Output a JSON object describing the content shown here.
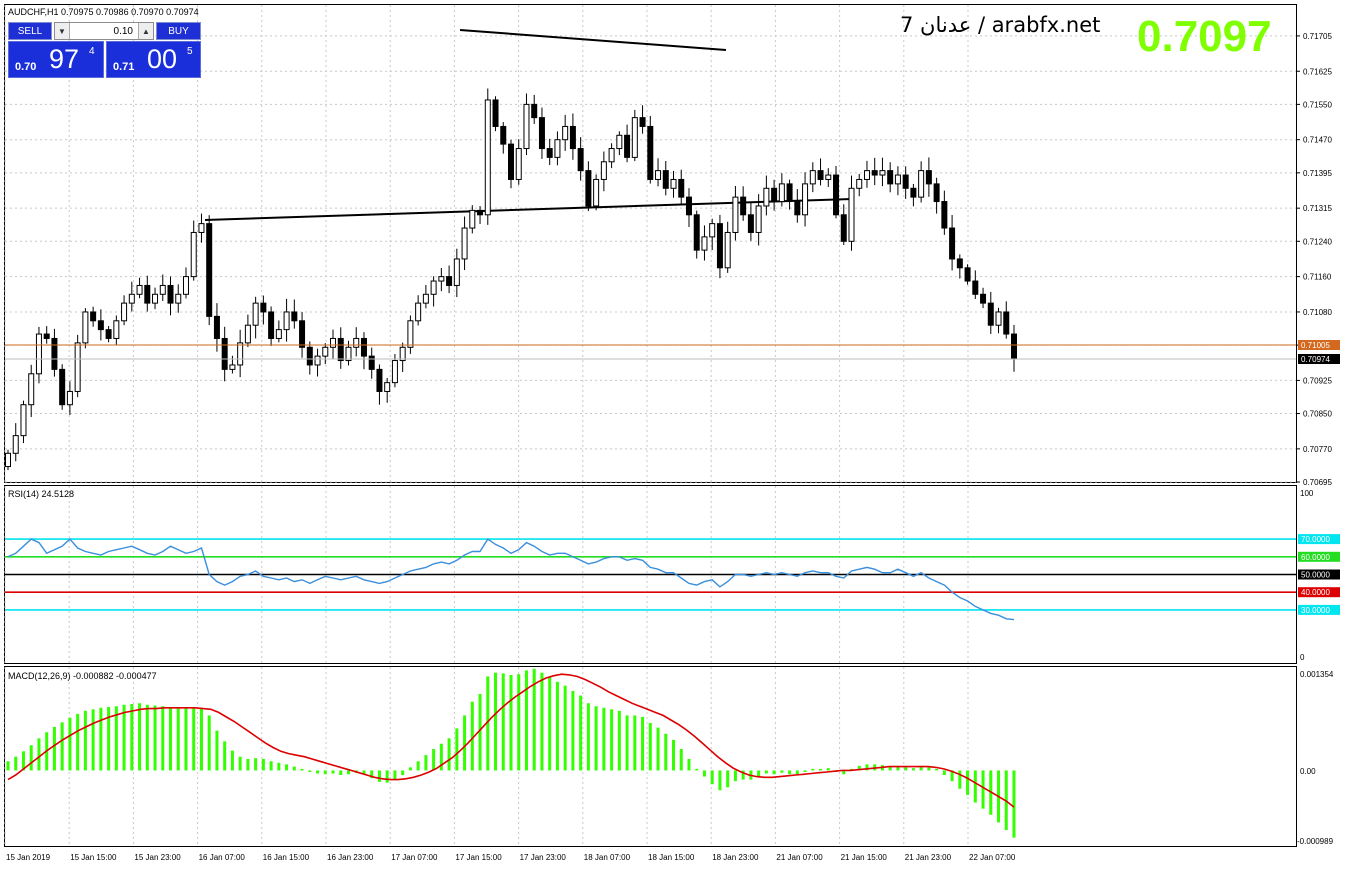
{
  "window": {
    "title": "AUDCHF,H1  0.70975 0.70986 0.70970 0.70974",
    "watermark": "7 عدنان / arabfx.net",
    "big_price": "0.7097"
  },
  "trade_panel": {
    "sell_label": "SELL",
    "buy_label": "BUY",
    "lot": "0.10",
    "sell_small": "0.70",
    "sell_big": "97",
    "sell_sup": "4",
    "buy_small": "0.71",
    "buy_big": "00",
    "buy_sup": "5"
  },
  "colors": {
    "background": "#ffffff",
    "grid": "#c8c8c8",
    "candle": "#000000",
    "rsi_line": "#3a8fdc",
    "macd_hist": "#33ff00",
    "macd_signal": "#dd0000",
    "ask_line": "#d2691e",
    "level_70_30": "#00e5ee",
    "level_60": "#22dd22",
    "level_50": "#000000",
    "level_40": "#dd0000",
    "big_price": "#7fff00"
  },
  "chart_data": [
    {
      "type": "candlestick",
      "symbol": "AUDCHF",
      "timeframe": "H1",
      "ylim": [
        0.70695,
        0.71775
      ],
      "yticks": [
        "0.71705",
        "0.71625",
        "0.71550",
        "0.71470",
        "0.71395",
        "0.71315",
        "0.71240",
        "0.71160",
        "0.71080",
        "0.71005",
        "0.70925",
        "0.70850",
        "0.70770",
        "0.70695"
      ],
      "xticks": [
        "15 Jan 2019",
        "15 Jan 15:00",
        "15 Jan 23:00",
        "16 Jan 07:00",
        "16 Jan 15:00",
        "16 Jan 23:00",
        "17 Jan 07:00",
        "17 Jan 15:00",
        "17 Jan 23:00",
        "18 Jan 07:00",
        "18 Jan 15:00",
        "18 Jan 23:00",
        "21 Jan 07:00",
        "21 Jan 15:00",
        "21 Jan 23:00",
        "22 Jan 07:00"
      ],
      "ask_price": "0.71005",
      "bid_price": "0.70974",
      "close": [
        0.7076,
        0.708,
        0.7087,
        0.7094,
        0.7103,
        0.7102,
        0.7095,
        0.7087,
        0.709,
        0.7101,
        0.7108,
        0.7106,
        0.7104,
        0.7102,
        0.7106,
        0.711,
        0.7112,
        0.7114,
        0.711,
        0.7112,
        0.7114,
        0.711,
        0.7112,
        0.7116,
        0.7126,
        0.7128,
        0.7107,
        0.7102,
        0.7095,
        0.7096,
        0.7101,
        0.7105,
        0.711,
        0.7108,
        0.7102,
        0.7104,
        0.7108,
        0.7106,
        0.71,
        0.7096,
        0.7098,
        0.71,
        0.7102,
        0.7097,
        0.71,
        0.7102,
        0.7098,
        0.7095,
        0.709,
        0.7092,
        0.7097,
        0.71,
        0.7106,
        0.711,
        0.7112,
        0.7115,
        0.7116,
        0.7114,
        0.712,
        0.7127,
        0.7131,
        0.713,
        0.7156,
        0.715,
        0.7146,
        0.7138,
        0.7145,
        0.7155,
        0.7152,
        0.7145,
        0.7143,
        0.7147,
        0.715,
        0.7145,
        0.714,
        0.7132,
        0.7138,
        0.7142,
        0.7145,
        0.7148,
        0.7143,
        0.7152,
        0.715,
        0.7138,
        0.714,
        0.7136,
        0.7138,
        0.7134,
        0.713,
        0.7122,
        0.7125,
        0.7128,
        0.7118,
        0.7126,
        0.7134,
        0.713,
        0.7126,
        0.7132,
        0.7136,
        0.7133,
        0.7137,
        0.7133,
        0.713,
        0.7137,
        0.714,
        0.7138,
        0.7139,
        0.713,
        0.7124,
        0.7136,
        0.7138,
        0.714,
        0.7139,
        0.714,
        0.7137,
        0.7139,
        0.7136,
        0.7134,
        0.714,
        0.7137,
        0.7133,
        0.7127,
        0.712,
        0.7118,
        0.7115,
        0.7112,
        0.711,
        0.7105,
        0.7108,
        0.7103,
        0.70974
      ],
      "candles_description": "Hourly AUDCHF candles from 15 Jan 2019 to 22 Jan 07:00; values estimated from the price axis."
    },
    {
      "type": "line",
      "title": "RSI(14) 24.5128",
      "ylim": [
        0,
        100
      ],
      "levels": [
        {
          "label": "70.0000",
          "value": 70
        },
        {
          "label": "60.0000",
          "value": 60
        },
        {
          "label": "50.0000",
          "value": 50
        },
        {
          "label": "40.0000",
          "value": 40
        },
        {
          "label": "30.0000",
          "value": 30
        }
      ],
      "scale_labels": [
        "100",
        "0"
      ],
      "values": [
        60,
        62,
        66,
        70,
        68,
        62,
        64,
        66,
        70,
        65,
        63,
        62,
        61,
        63,
        64,
        65,
        66,
        64,
        62,
        61,
        63,
        66,
        64,
        62,
        63,
        65,
        50,
        46,
        44,
        46,
        49,
        50,
        52,
        49,
        48,
        47,
        48,
        46,
        47,
        45,
        47,
        49,
        48,
        47,
        48,
        49,
        47,
        46,
        45,
        46,
        48,
        50,
        52,
        53,
        54,
        56,
        57,
        56,
        58,
        61,
        63,
        63,
        70,
        67,
        65,
        62,
        64,
        68,
        66,
        63,
        61,
        62,
        62,
        60,
        58,
        56,
        57,
        59,
        60,
        60,
        58,
        59,
        58,
        54,
        53,
        51,
        51,
        48,
        45,
        44,
        46,
        47,
        43,
        46,
        50,
        50,
        49,
        50,
        51,
        50,
        51,
        50,
        49,
        51,
        52,
        51,
        51,
        49,
        48,
        52,
        53,
        54,
        53,
        51,
        51,
        53,
        51,
        49,
        51,
        48,
        46,
        44,
        40,
        37,
        35,
        32,
        30,
        28,
        27,
        25,
        24.5
      ]
    },
    {
      "type": "bar",
      "title": "MACD(12,26,9) -0.000882 -0.000477",
      "ylim": [
        -0.000989,
        0.001354
      ],
      "scale_labels": [
        "0.001354",
        "0.00",
        "-0.000989"
      ],
      "histogram": [
        0.00012,
        0.00018,
        0.00025,
        0.00033,
        0.00042,
        0.0005,
        0.00057,
        0.00063,
        0.00069,
        0.00074,
        0.00078,
        0.0008,
        0.00082,
        0.00083,
        0.00084,
        0.00086,
        0.00087,
        0.00088,
        0.00086,
        0.00085,
        0.00084,
        0.00082,
        0.00081,
        0.00081,
        0.00082,
        0.00082,
        0.00072,
        0.00052,
        0.00038,
        0.00026,
        0.00018,
        0.00015,
        0.00016,
        0.00015,
        0.00012,
        0.0001,
        8e-05,
        5e-05,
        2e-05,
        -2e-05,
        -4e-05,
        -5e-05,
        -4e-05,
        -6e-05,
        -5e-05,
        -3e-05,
        -5e-05,
        -0.0001,
        -0.00015,
        -0.00016,
        -0.00012,
        -6e-05,
        4e-05,
        0.00012,
        0.0002,
        0.00028,
        0.00035,
        0.00042,
        0.00055,
        0.00072,
        0.0009,
        0.001,
        0.00123,
        0.00128,
        0.00127,
        0.00125,
        0.00126,
        0.00131,
        0.00133,
        0.00128,
        0.00122,
        0.00116,
        0.00111,
        0.00104,
        0.00098,
        0.00088,
        0.00084,
        0.00082,
        0.0008,
        0.00078,
        0.00072,
        0.00072,
        0.0007,
        0.00062,
        0.00056,
        0.00048,
        0.0004,
        0.00028,
        0.00015,
        2e-05,
        -8e-05,
        -0.00018,
        -0.00026,
        -0.00022,
        -0.00014,
        -0.00012,
        -0.00012,
        -8e-05,
        -4e-05,
        -5e-05,
        -3e-05,
        -5e-05,
        -5e-05,
        -2e-05,
        2e-05,
        2e-05,
        3e-05,
        -2e-05,
        -5e-05,
        2e-05,
        6e-05,
        8e-05,
        8e-05,
        7e-05,
        5e-05,
        6e-05,
        4e-05,
        3e-05,
        6e-05,
        4e-05,
        2e-05,
        -6e-05,
        -0.00014,
        -0.00024,
        -0.00032,
        -0.00042,
        -0.0005,
        -0.00058,
        -0.00068,
        -0.00078,
        -0.00088
      ],
      "signal": [
        -0.00012,
        -6e-05,
        2e-05,
        0.0001,
        0.00018,
        0.00026,
        0.00033,
        0.0004,
        0.00046,
        0.00052,
        0.00057,
        0.00062,
        0.00066,
        0.0007,
        0.00073,
        0.00076,
        0.00078,
        0.0008,
        0.00081,
        0.00081,
        0.00082,
        0.00082,
        0.00082,
        0.00082,
        0.00082,
        0.00081,
        0.0008,
        0.00076,
        0.0007,
        0.00064,
        0.00057,
        0.0005,
        0.00043,
        0.00036,
        0.0003,
        0.00025,
        0.00022,
        0.0002,
        0.00018,
        0.00015,
        0.00012,
        9e-05,
        6e-05,
        3e-05,
        0.0,
        -3e-05,
        -6e-05,
        -9e-05,
        -0.00011,
        -0.00012,
        -0.00012,
        -0.00011,
        -9e-05,
        -6e-05,
        -2e-05,
        3e-05,
        0.0001,
        0.00017,
        0.00026,
        0.00036,
        0.00047,
        0.00058,
        0.00069,
        0.00079,
        0.00088,
        0.00096,
        0.00103,
        0.0011,
        0.00116,
        0.00121,
        0.00124,
        0.00126,
        0.00125,
        0.00123,
        0.00119,
        0.00114,
        0.00109,
        0.00103,
        0.00098,
        0.00093,
        0.00088,
        0.00084,
        0.0008,
        0.00076,
        0.00072,
        0.00066,
        0.0006,
        0.00053,
        0.00045,
        0.00036,
        0.00027,
        0.00018,
        0.0001,
        3e-05,
        -2e-05,
        -6e-05,
        -8e-05,
        -9e-05,
        -9e-05,
        -8e-05,
        -7e-05,
        -6e-05,
        -5e-05,
        -4e-05,
        -3e-05,
        -2e-05,
        -1e-05,
        0.0,
        0.0,
        1e-05,
        2e-05,
        3e-05,
        4e-05,
        5e-05,
        5e-05,
        5e-05,
        5e-05,
        5e-05,
        5e-05,
        4e-05,
        2e-05,
        -1e-05,
        -5e-05,
        -0.0001,
        -0.00016,
        -0.00022,
        -0.00028,
        -0.00034,
        -0.0004,
        -0.00048
      ]
    }
  ]
}
